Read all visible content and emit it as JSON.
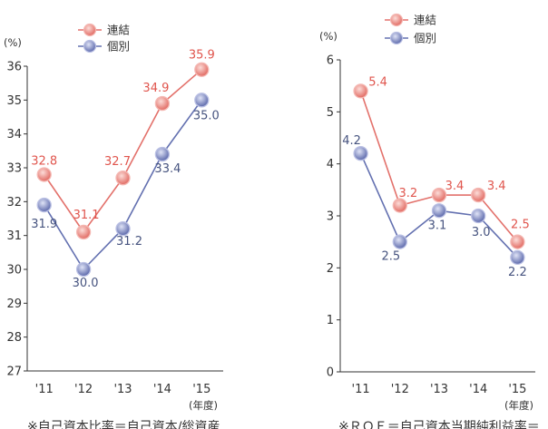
{
  "chart_data": [
    {
      "type": "line",
      "unit_label": "(%)",
      "xlabel": "(年度)",
      "categories": [
        "'11",
        "'12",
        "'13",
        "'14",
        "'15"
      ],
      "ylim": [
        27,
        36
      ],
      "yticks": [
        27,
        28,
        29,
        30,
        31,
        32,
        33,
        34,
        35,
        36
      ],
      "grid": false,
      "legend": "top",
      "series": [
        {
          "name": "連結",
          "values": [
            32.8,
            31.1,
            32.7,
            34.9,
            35.9
          ],
          "color": "#e3716b",
          "marker_fill": "#e0655d",
          "marker_light": "#fcdcd8",
          "marker_edge": "#f4b7b2",
          "label_color": "#e0554d"
        },
        {
          "name": "個別",
          "values": [
            31.9,
            30.0,
            31.2,
            33.4,
            35.0
          ],
          "color": "#6370b0",
          "marker_fill": "#5764a8",
          "marker_light": "#dfe3f6",
          "marker_edge": "#b9bfe3",
          "label_color": "#46537f"
        }
      ]
    },
    {
      "type": "line",
      "unit_label": "(%)",
      "xlabel": "(年度)",
      "categories": [
        "'11",
        "'12",
        "'13",
        "'14",
        "'15"
      ],
      "ylim": [
        0,
        6
      ],
      "yticks": [
        0,
        1,
        2,
        3,
        4,
        5,
        6
      ],
      "grid": false,
      "legend": "top",
      "series": [
        {
          "name": "連結",
          "values": [
            5.4,
            3.2,
            3.4,
            3.4,
            2.5
          ],
          "color": "#e3716b",
          "marker_fill": "#e0655d",
          "marker_light": "#fcdcd8",
          "marker_edge": "#f4b7b2",
          "label_color": "#e0554d"
        },
        {
          "name": "個別",
          "values": [
            4.2,
            2.5,
            3.1,
            3.0,
            2.2
          ],
          "color": "#6370b0",
          "marker_fill": "#5764a8",
          "marker_light": "#dfe3f6",
          "marker_edge": "#b9bfe3",
          "label_color": "#46537f"
        }
      ]
    }
  ],
  "footnotes": {
    "left": "※自己資本比率＝自己資本/総資産",
    "right": "※ＲＯＥ＝自己資本当期純利益率＝"
  }
}
